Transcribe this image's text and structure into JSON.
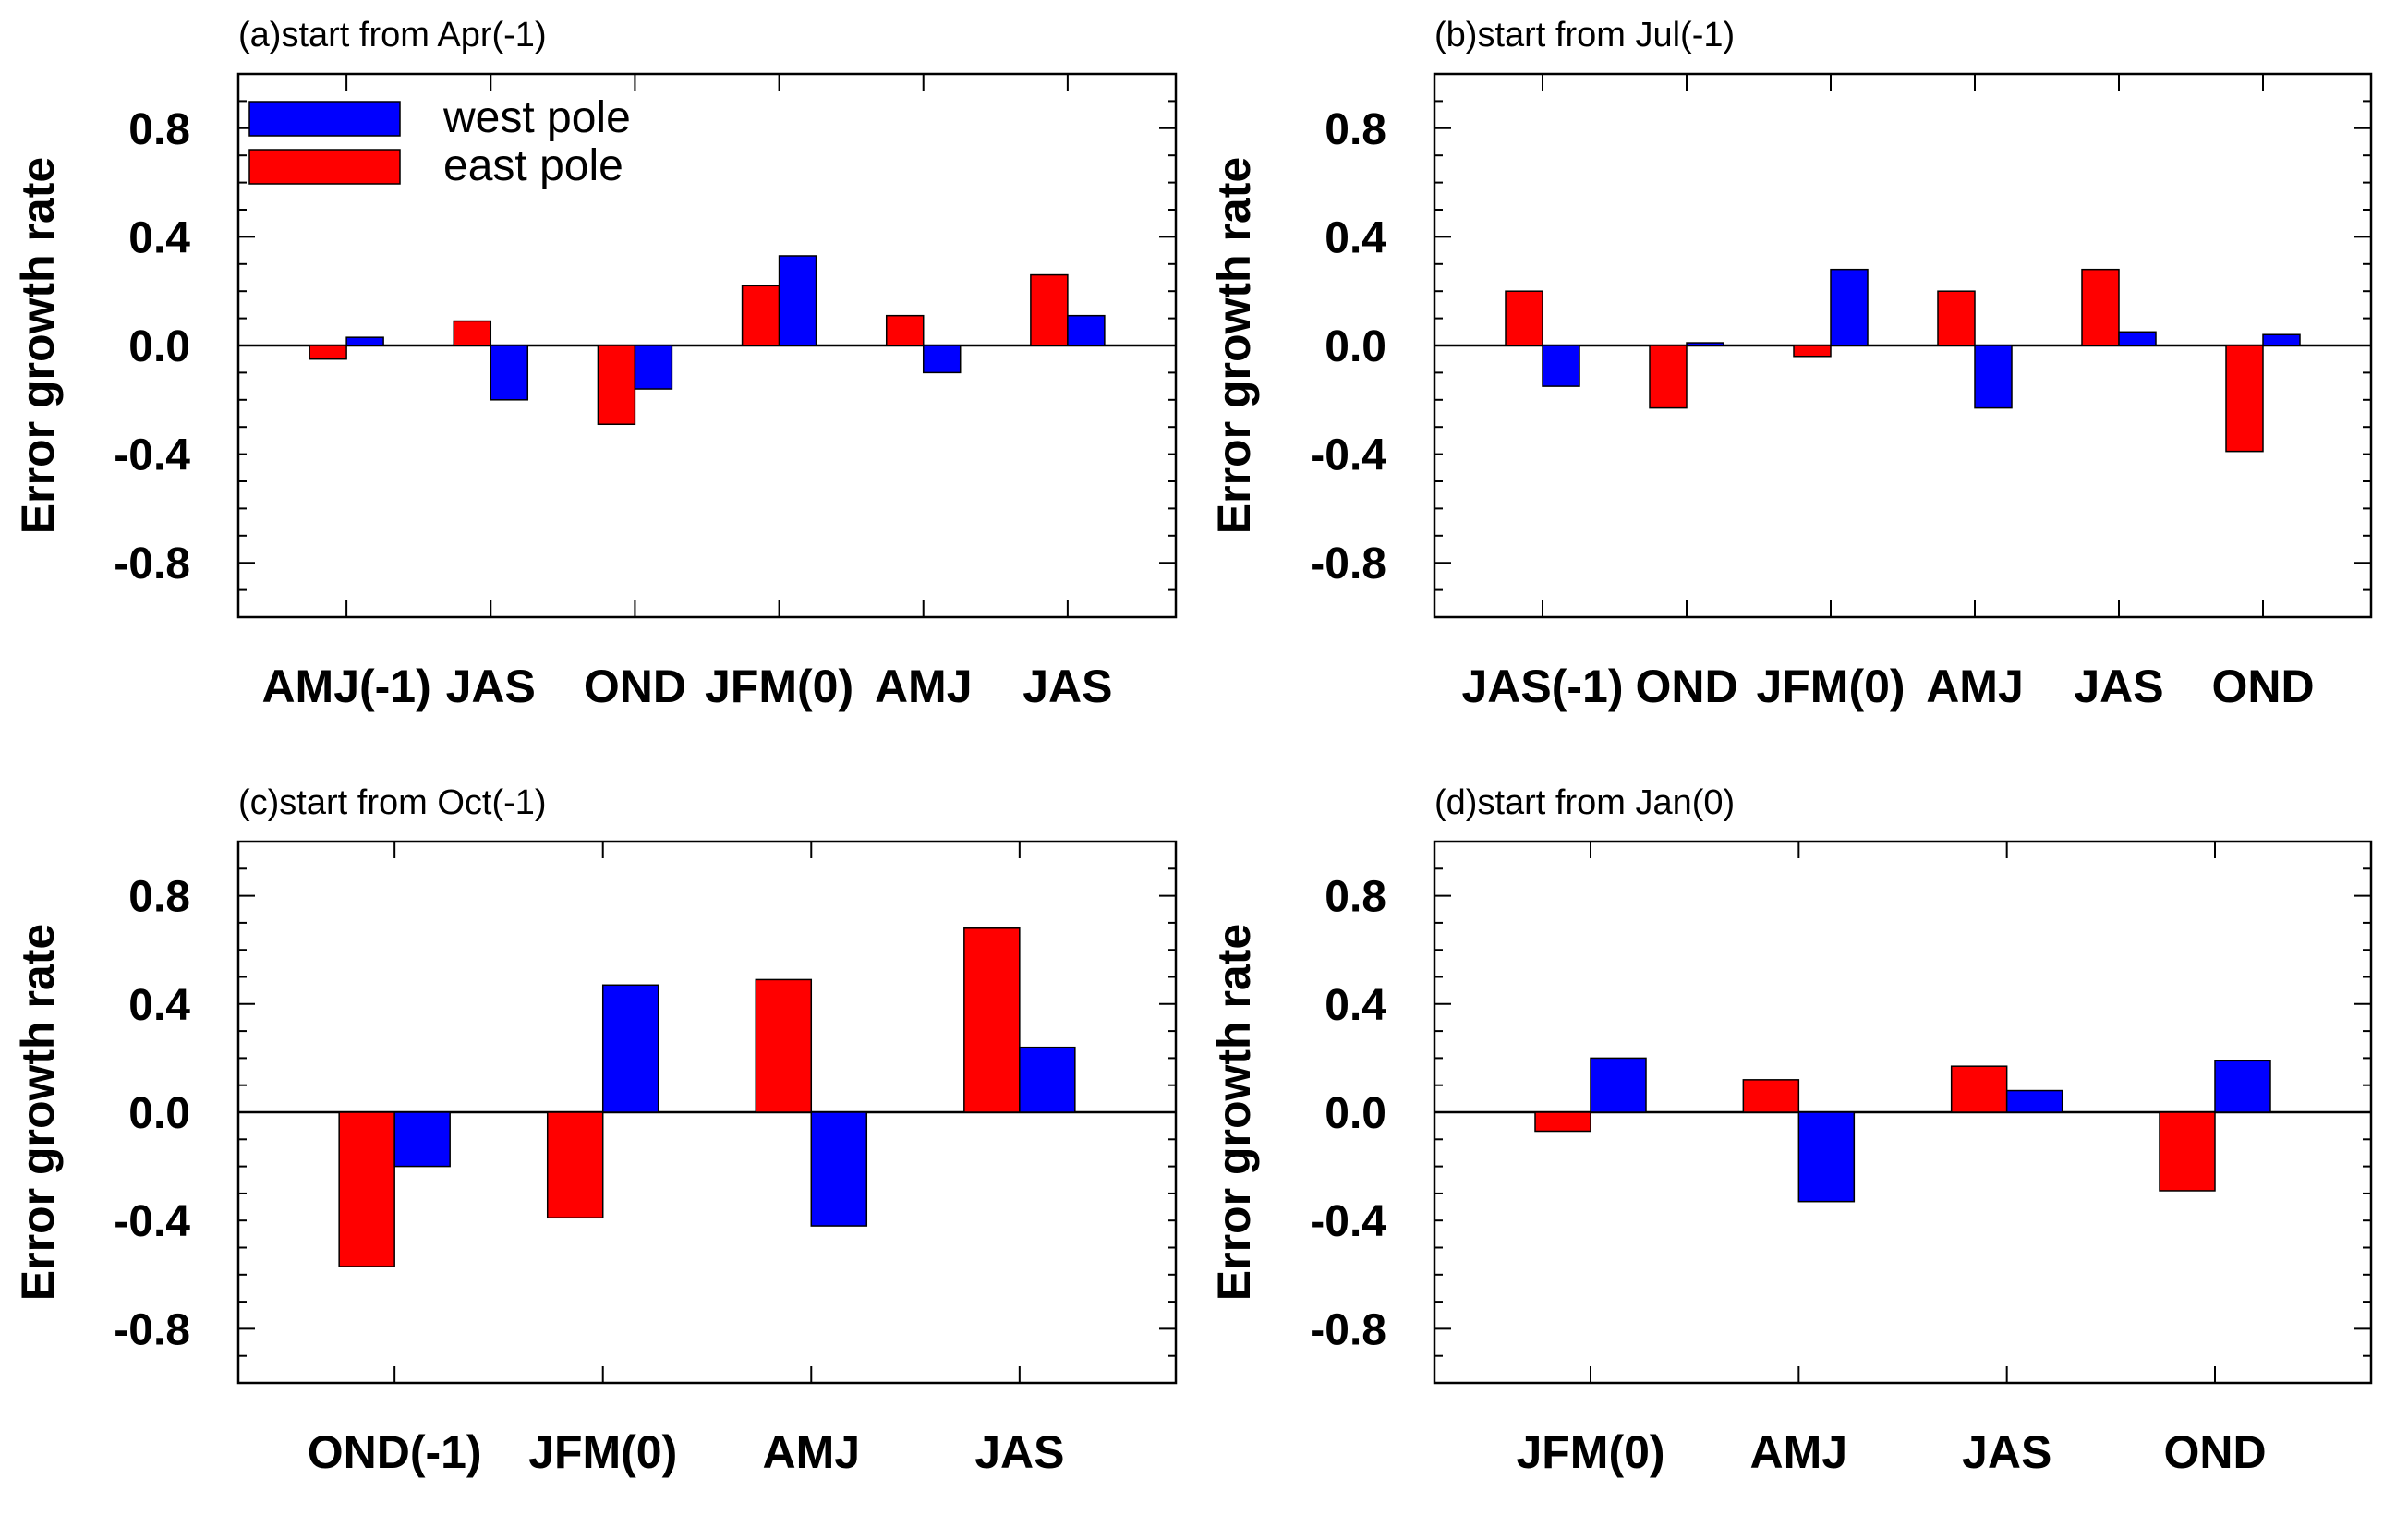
{
  "chart_data": [
    {
      "type": "bar",
      "title": "(a)start from Apr(-1)",
      "ylabel": "Error growth rate",
      "ylim": [
        -1.0,
        1.0
      ],
      "yticks": [
        "0.8",
        "0.4",
        "0.0",
        "-0.4",
        "-0.8"
      ],
      "categories": [
        "AMJ(-1)",
        "JAS",
        "OND",
        "JFM(0)",
        "AMJ",
        "JAS"
      ],
      "series": [
        {
          "name": "east pole",
          "color": "#ff0000",
          "values": [
            -0.05,
            0.09,
            -0.29,
            0.22,
            0.11,
            0.26
          ]
        },
        {
          "name": "west pole",
          "color": "#0000ff",
          "values": [
            0.03,
            -0.2,
            -0.16,
            0.33,
            -0.1,
            0.11
          ]
        }
      ],
      "legend": {
        "position": "top-left",
        "entries": [
          "west pole",
          "east pole"
        ]
      }
    },
    {
      "type": "bar",
      "title": "(b)start from Jul(-1)",
      "ylabel": "Error growth rate",
      "ylim": [
        -1.0,
        1.0
      ],
      "yticks": [
        "0.8",
        "0.4",
        "0.0",
        "-0.4",
        "-0.8"
      ],
      "categories": [
        "JAS(-1)",
        "OND",
        "JFM(0)",
        "AMJ",
        "JAS",
        "OND"
      ],
      "series": [
        {
          "name": "east pole",
          "color": "#ff0000",
          "values": [
            0.2,
            -0.23,
            -0.04,
            0.2,
            0.28,
            -0.39
          ]
        },
        {
          "name": "west pole",
          "color": "#0000ff",
          "values": [
            -0.15,
            0.01,
            0.28,
            -0.23,
            0.05,
            0.04
          ]
        }
      ]
    },
    {
      "type": "bar",
      "title": "(c)start from Oct(-1)",
      "ylabel": "Error growth rate",
      "ylim": [
        -1.0,
        1.0
      ],
      "yticks": [
        "0.8",
        "0.4",
        "0.0",
        "-0.4",
        "-0.8"
      ],
      "categories": [
        "OND(-1)",
        "JFM(0)",
        "AMJ",
        "JAS"
      ],
      "series": [
        {
          "name": "east pole",
          "color": "#ff0000",
          "values": [
            -0.57,
            -0.39,
            0.49,
            0.68
          ]
        },
        {
          "name": "west pole",
          "color": "#0000ff",
          "values": [
            -0.2,
            0.47,
            -0.42,
            0.24
          ]
        }
      ]
    },
    {
      "type": "bar",
      "title": "(d)start from Jan(0)",
      "ylabel": "Error growth rate",
      "ylim": [
        -1.0,
        1.0
      ],
      "yticks": [
        "0.8",
        "0.4",
        "0.0",
        "-0.4",
        "-0.8"
      ],
      "categories": [
        "JFM(0)",
        "AMJ",
        "JAS",
        "OND"
      ],
      "series": [
        {
          "name": "east pole",
          "color": "#ff0000",
          "values": [
            -0.07,
            0.12,
            0.17,
            -0.29
          ]
        },
        {
          "name": "west pole",
          "color": "#0000ff",
          "values": [
            0.2,
            -0.33,
            0.08,
            0.19
          ]
        }
      ]
    }
  ]
}
